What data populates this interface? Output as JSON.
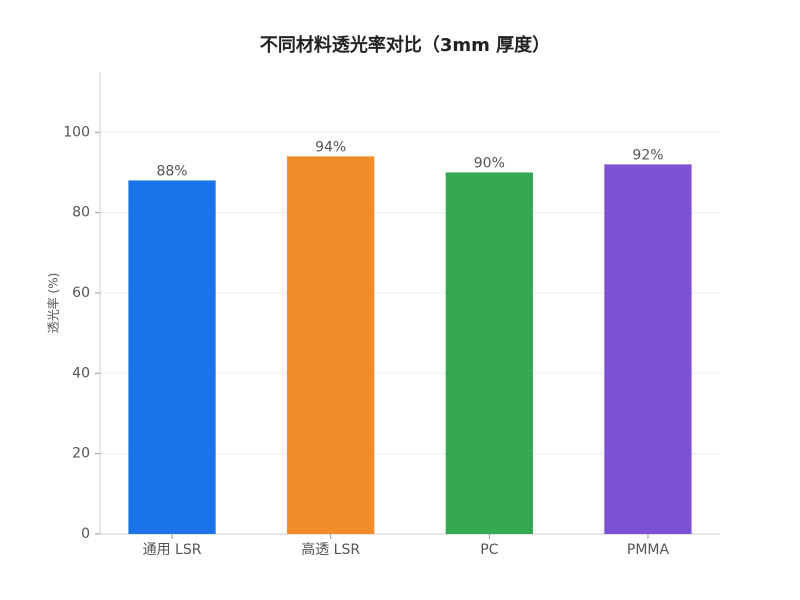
{
  "chart_data": {
    "type": "bar",
    "title": "不同材料透光率对比（3mm 厚度）",
    "y_label": "透光率 (%)",
    "categories": [
      "通用 LSR",
      "高透 LSR",
      "PC",
      "PMMA"
    ],
    "values": [
      88,
      94,
      90,
      92
    ],
    "value_labels": [
      "88%",
      "94%",
      "90%",
      "92%"
    ],
    "colors": [
      "#1a73e8",
      "#f28b2a",
      "#34a853",
      "#7b52d4"
    ],
    "ylim": [
      0,
      115
    ],
    "yticks": [
      0,
      20,
      40,
      60,
      80,
      100
    ],
    "grid": true
  }
}
